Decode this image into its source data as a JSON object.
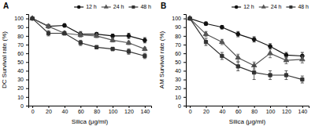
{
  "chart_data": [
    {
      "type": "line",
      "title": "A",
      "xlabel": "Silica (μg/ml)",
      "ylabel": "DC Survival rate (%)",
      "x": [
        0,
        20,
        40,
        60,
        80,
        100,
        120,
        140
      ],
      "series": [
        {
          "name": "12 h",
          "color": "#111111",
          "marker": "circle",
          "line_style": "solid",
          "values": [
            100,
            91,
            92,
            82,
            82,
            80,
            80,
            75
          ],
          "yerr": [
            0,
            2,
            2,
            3,
            2,
            2,
            3,
            3
          ]
        },
        {
          "name": "24 h",
          "color": "#555555",
          "marker": "triangle",
          "line_style": "solid",
          "values": [
            100,
            91,
            83,
            81,
            80,
            75,
            72,
            65
          ],
          "yerr": [
            0,
            2,
            2,
            2,
            2,
            2,
            2,
            2
          ]
        },
        {
          "name": "48 h",
          "color": "#333333",
          "marker": "square",
          "line_style": "solid",
          "values": [
            100,
            83,
            83,
            72,
            67,
            65,
            62,
            57
          ],
          "yerr": [
            0,
            3,
            2,
            3,
            2,
            2,
            3,
            3
          ]
        }
      ],
      "xlim": [
        -5,
        148
      ],
      "xticks": [
        0,
        20,
        40,
        60,
        80,
        100,
        120,
        140
      ],
      "ylim": [
        0,
        105
      ],
      "yticks": [
        0,
        10,
        20,
        30,
        40,
        50,
        60,
        70,
        80,
        90,
        100
      ],
      "legend": "upper right",
      "grid": false
    },
    {
      "type": "line",
      "title": "B",
      "xlabel": "Silica (μg/ml)",
      "ylabel": "AM Survival rate (%)",
      "x": [
        0,
        20,
        40,
        60,
        80,
        100,
        120,
        140
      ],
      "series": [
        {
          "name": "12 h",
          "color": "#111111",
          "marker": "circle",
          "line_style": "solid",
          "values": [
            100,
            94,
            90,
            82,
            76,
            68,
            58,
            57
          ],
          "yerr": [
            0,
            2,
            2,
            3,
            3,
            3,
            3,
            4
          ]
        },
        {
          "name": "24 h",
          "color": "#555555",
          "marker": "triangle",
          "line_style": "solid",
          "values": [
            100,
            82,
            73,
            55,
            46,
            60,
            52,
            53
          ],
          "yerr": [
            0,
            3,
            3,
            4,
            4,
            5,
            4,
            4
          ]
        },
        {
          "name": "48 h",
          "color": "#333333",
          "marker": "square",
          "line_style": "solid",
          "values": [
            100,
            73,
            57,
            45,
            38,
            35,
            35,
            30
          ],
          "yerr": [
            0,
            4,
            4,
            5,
            8,
            5,
            5,
            4
          ]
        }
      ],
      "xlim": [
        -5,
        148
      ],
      "xticks": [
        0,
        20,
        40,
        60,
        80,
        100,
        120,
        140
      ],
      "ylim": [
        0,
        105
      ],
      "yticks": [
        0,
        10,
        20,
        30,
        40,
        50,
        60,
        70,
        80,
        90,
        100
      ],
      "legend": "upper right",
      "grid": false
    }
  ]
}
